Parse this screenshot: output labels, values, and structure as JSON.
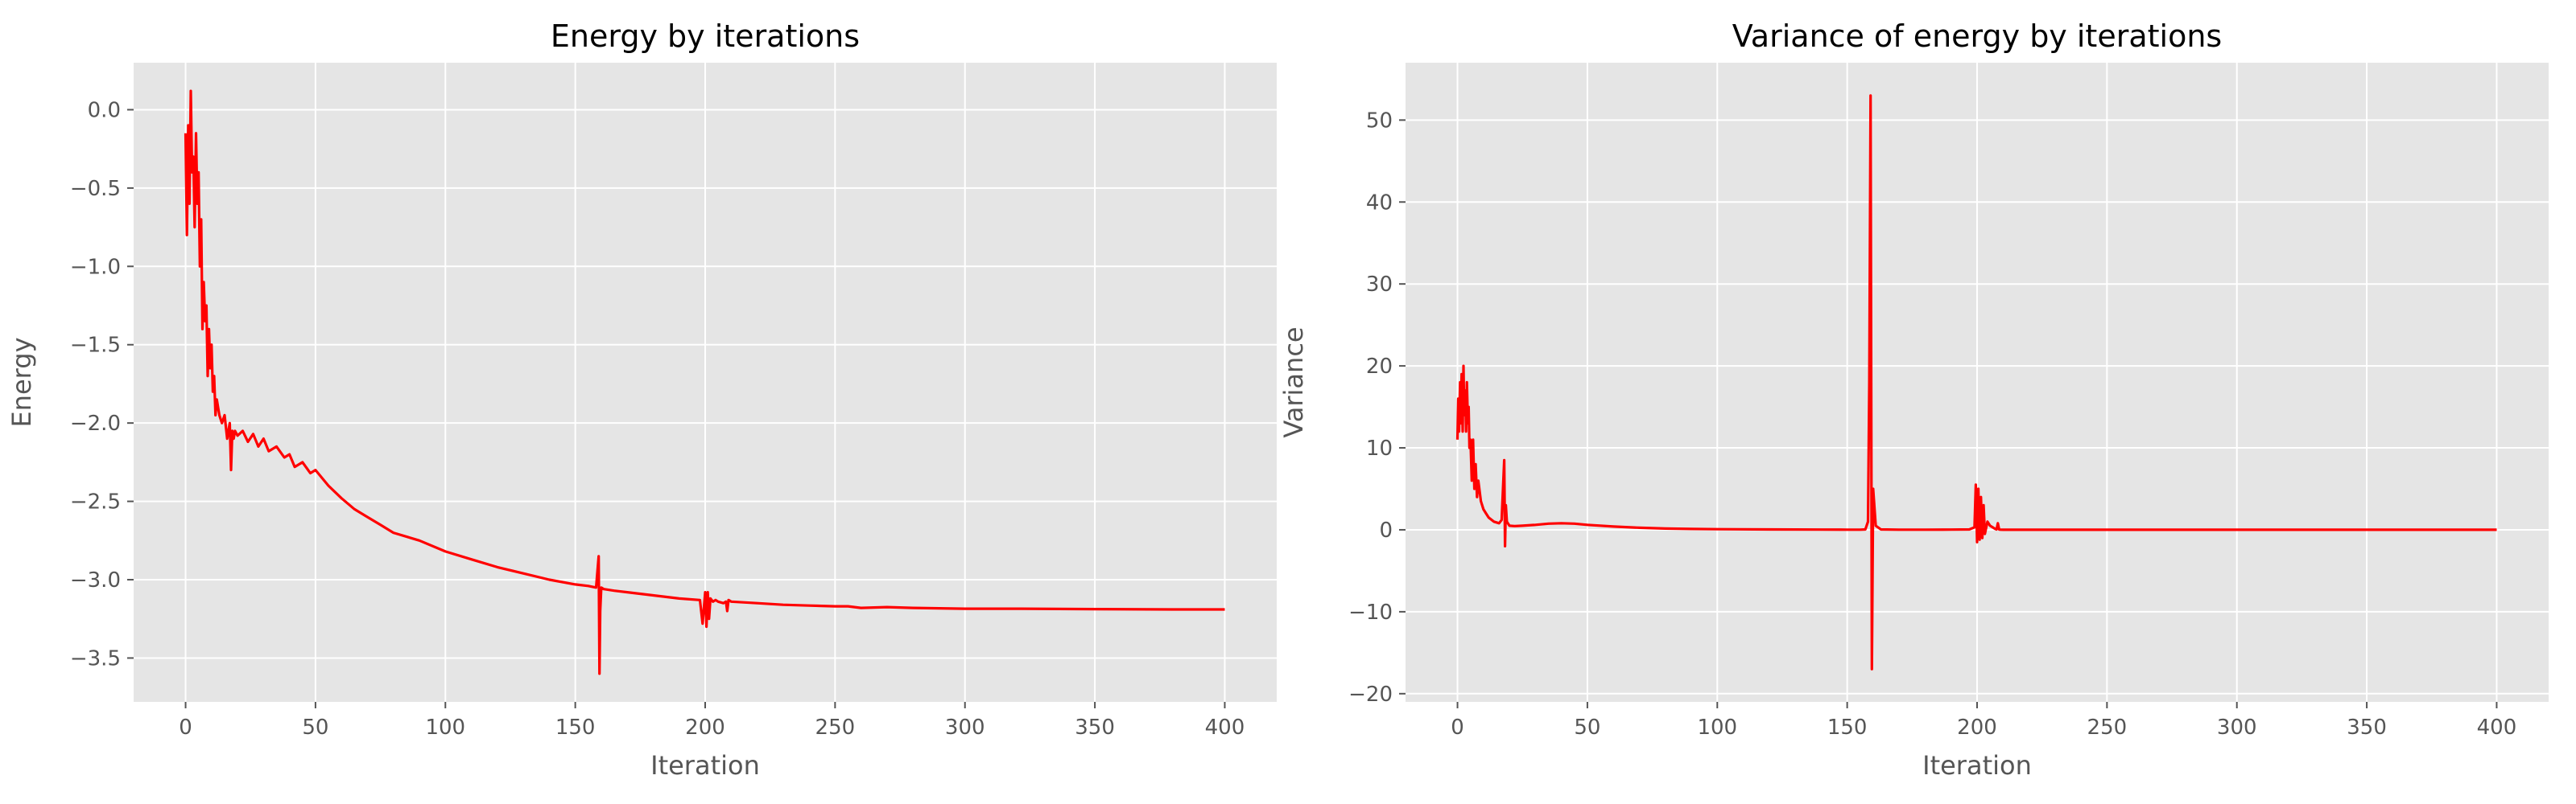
{
  "chart_data": [
    {
      "type": "line",
      "title": "Energy by iterations",
      "xlabel": "Iteration",
      "ylabel": "Energy",
      "xlim": [
        -20,
        420
      ],
      "ylim": [
        -3.78,
        0.3
      ],
      "xticks": [
        0,
        50,
        100,
        150,
        200,
        250,
        300,
        350,
        400
      ],
      "yticks": [
        -3.5,
        -3.0,
        -2.5,
        -2.0,
        -1.5,
        -1.0,
        -0.5,
        0.0
      ],
      "xtick_labels": [
        "0",
        "50",
        "100",
        "150",
        "200",
        "250",
        "300",
        "350",
        "400"
      ],
      "ytick_labels": [
        "−3.5",
        "−3.0",
        "−2.5",
        "−2.0",
        "−1.5",
        "−1.0",
        "−0.5",
        "0.0"
      ],
      "grid": true,
      "line_color": "#ff0000",
      "background_color": "#e5e5e5",
      "grid_color": "#ffffff",
      "series": [
        {
          "x": [
            0,
            0.5,
            1,
            1.5,
            2,
            2.5,
            3,
            3.5,
            4,
            4.5,
            5,
            5.5,
            6,
            6.5,
            7,
            7.5,
            8,
            8.5,
            9,
            9.5,
            10,
            10.5,
            11,
            11.5,
            12,
            13,
            14,
            15,
            16,
            17,
            17.5,
            18,
            18.5,
            19,
            20,
            22,
            24,
            26,
            28,
            30,
            32,
            35,
            38,
            40,
            42,
            45,
            48,
            50,
            55,
            60,
            65,
            70,
            75,
            80,
            90,
            100,
            110,
            120,
            130,
            140,
            150,
            155,
            158,
            159,
            159.3,
            159.6,
            160,
            161,
            165,
            170,
            180,
            190,
            198,
            199,
            200,
            200.5,
            201,
            201.5,
            202,
            203,
            204,
            205,
            207,
            208,
            208.5,
            209,
            210,
            220,
            230,
            240,
            250,
            255,
            260,
            270,
            280,
            300,
            320,
            350,
            380,
            400
          ],
          "y": [
            -0.15,
            -0.8,
            -0.1,
            -0.6,
            0.12,
            -0.4,
            -0.3,
            -0.75,
            -0.15,
            -0.6,
            -0.4,
            -1.0,
            -0.7,
            -1.4,
            -1.1,
            -1.35,
            -1.25,
            -1.7,
            -1.4,
            -1.65,
            -1.5,
            -1.8,
            -1.7,
            -1.95,
            -1.85,
            -1.95,
            -2.0,
            -1.95,
            -2.1,
            -2.0,
            -2.3,
            -2.05,
            -2.1,
            -2.05,
            -2.08,
            -2.05,
            -2.12,
            -2.07,
            -2.15,
            -2.1,
            -2.18,
            -2.15,
            -2.22,
            -2.2,
            -2.28,
            -2.25,
            -2.32,
            -2.3,
            -2.4,
            -2.48,
            -2.55,
            -2.6,
            -2.65,
            -2.7,
            -2.75,
            -2.82,
            -2.87,
            -2.92,
            -2.96,
            -3.0,
            -3.03,
            -3.04,
            -3.05,
            -2.85,
            -3.6,
            -3.2,
            -3.05,
            -3.06,
            -3.07,
            -3.08,
            -3.1,
            -3.12,
            -3.13,
            -3.28,
            -3.08,
            -3.3,
            -3.08,
            -3.25,
            -3.12,
            -3.14,
            -3.13,
            -3.14,
            -3.15,
            -3.14,
            -3.2,
            -3.13,
            -3.14,
            -3.15,
            -3.16,
            -3.165,
            -3.17,
            -3.17,
            -3.18,
            -3.175,
            -3.18,
            -3.185,
            -3.185,
            -3.188,
            -3.19,
            -3.19
          ]
        }
      ]
    },
    {
      "type": "line",
      "title": "Variance of energy by iterations",
      "xlabel": "Iteration",
      "ylabel": "Variance",
      "xlim": [
        -20,
        420
      ],
      "ylim": [
        -21,
        57
      ],
      "xticks": [
        0,
        50,
        100,
        150,
        200,
        250,
        300,
        350,
        400
      ],
      "yticks": [
        -20,
        -10,
        0,
        10,
        20,
        30,
        40,
        50
      ],
      "xtick_labels": [
        "0",
        "50",
        "100",
        "150",
        "200",
        "250",
        "300",
        "350",
        "400"
      ],
      "ytick_labels": [
        "−20",
        "−10",
        "0",
        "10",
        "20",
        "30",
        "40",
        "50"
      ],
      "grid": true,
      "line_color": "#ff0000",
      "background_color": "#e5e5e5",
      "grid_color": "#ffffff",
      "series": [
        {
          "x": [
            0,
            0.3,
            0.6,
            1,
            1.3,
            1.6,
            2,
            2.3,
            2.6,
            3,
            3.3,
            3.6,
            4,
            4.3,
            4.6,
            5,
            5.5,
            6,
            6.5,
            7,
            7.5,
            8,
            9,
            10,
            11,
            12,
            14,
            16,
            17,
            18,
            18.3,
            18.6,
            19,
            20,
            22,
            25,
            30,
            35,
            40,
            45,
            50,
            60,
            70,
            80,
            90,
            100,
            120,
            140,
            150,
            155,
            157,
            158,
            158.5,
            159,
            159.5,
            160,
            161,
            163,
            170,
            180,
            190,
            197,
            199,
            199.5,
            200,
            200.5,
            201,
            201.5,
            202,
            202.5,
            203,
            204,
            205,
            206,
            207,
            207.5,
            208,
            208.5,
            209,
            210,
            220,
            250,
            300,
            350,
            400
          ],
          "y": [
            11,
            16,
            12,
            18,
            13,
            19,
            12,
            20,
            14,
            17,
            12,
            18,
            13,
            15,
            10,
            11,
            6,
            11,
            5,
            8,
            4,
            6,
            3.5,
            2.5,
            2,
            1.5,
            1,
            0.8,
            1.2,
            8.5,
            -2,
            3,
            1,
            0.5,
            0.45,
            0.5,
            0.6,
            0.75,
            0.8,
            0.75,
            0.6,
            0.4,
            0.25,
            0.15,
            0.1,
            0.07,
            0.05,
            0.03,
            0.02,
            0.02,
            0.05,
            1,
            18,
            53,
            -17,
            5,
            0.5,
            0.05,
            0.02,
            0.02,
            0.03,
            0.05,
            0.3,
            5.5,
            -1.5,
            5,
            -1.2,
            4,
            -1,
            3,
            -0.5,
            1,
            0.5,
            0.3,
            0.1,
            0.05,
            0.8,
            0.05,
            0.02,
            0.01,
            0.01,
            0.01,
            0.01,
            0.01,
            0.01
          ]
        }
      ]
    }
  ]
}
